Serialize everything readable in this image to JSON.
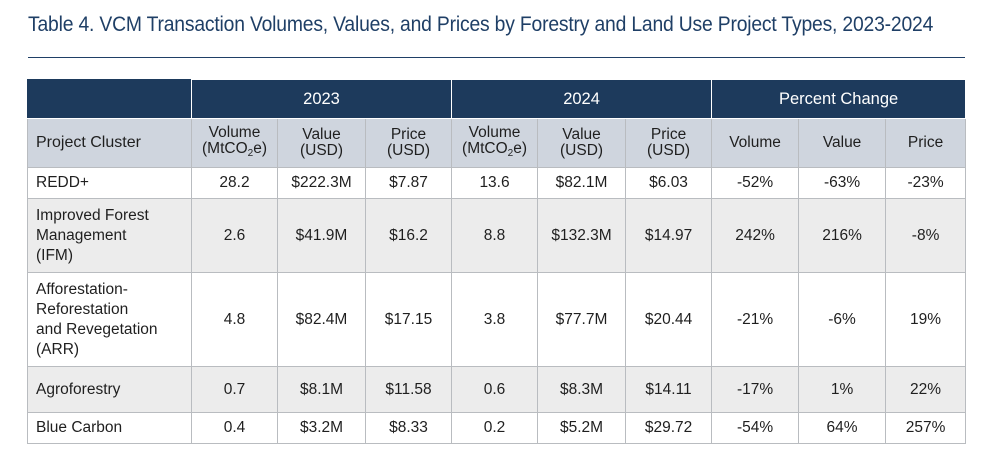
{
  "title": "Table 4. VCM Transaction Volumes, Values, and Prices by Forestry and Land Use Project Types, 2023-2024",
  "groups": {
    "g2023": "2023",
    "g2024": "2024",
    "pct": "Percent Change"
  },
  "columns": {
    "project_cluster": "Project Cluster",
    "volume_line1": "Volume",
    "volume_line2_pre": "(MtCO",
    "volume_line2_sub": "2",
    "volume_line2_post": "e)",
    "value_line1": "Value",
    "value_line2": "(USD)",
    "price_line1": "Price",
    "price_line2": "(USD)",
    "pct_volume": "Volume",
    "pct_value": "Value",
    "pct_price": "Price"
  },
  "rows": [
    {
      "name_lines": [
        "REDD+"
      ],
      "v2023": "28.2",
      "val2023": "$222.3M",
      "p2023": "$7.87",
      "v2024": "13.6",
      "val2024": "$82.1M",
      "p2024": "$6.03",
      "pv": "-52%",
      "pval": "-63%",
      "pp": "-23%"
    },
    {
      "name_lines": [
        "Improved Forest",
        "Management",
        "(IFM)"
      ],
      "v2023": "2.6",
      "val2023": "$41.9M",
      "p2023": "$16.2",
      "v2024": "8.8",
      "val2024": "$132.3M",
      "p2024": "$14.97",
      "pv": "242%",
      "pval": "216%",
      "pp": "-8%"
    },
    {
      "name_lines": [
        "Afforestation-",
        "Reforestation",
        "and Revegetation",
        "(ARR)"
      ],
      "v2023": "4.8",
      "val2023": "$82.4M",
      "p2023": "$17.15",
      "v2024": "3.8",
      "val2024": "$77.7M",
      "p2024": "$20.44",
      "pv": "-21%",
      "pval": "-6%",
      "pp": "19%"
    },
    {
      "name_lines": [
        "Agroforestry"
      ],
      "v2023": "0.7",
      "val2023": "$8.1M",
      "p2023": "$11.58",
      "v2024": "0.6",
      "val2024": "$8.3M",
      "p2024": "$14.11",
      "pv": "-17%",
      "pval": "1%",
      "pp": "22%"
    },
    {
      "name_lines": [
        "Blue Carbon"
      ],
      "v2023": "0.4",
      "val2023": "$3.2M",
      "p2023": "$8.33",
      "v2024": "0.2",
      "val2024": "$5.2M",
      "p2024": "$29.72",
      "pv": "-54%",
      "pval": "64%",
      "pp": "257%"
    }
  ]
}
